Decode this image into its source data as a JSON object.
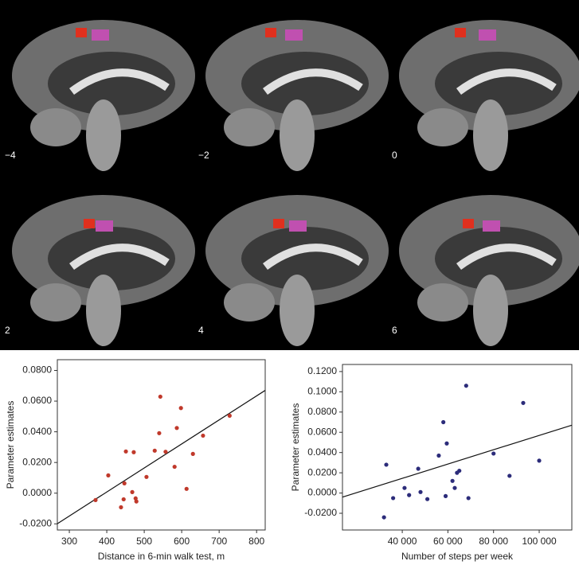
{
  "panels": [
    {
      "label": "−4"
    },
    {
      "label": "−2"
    },
    {
      "label": "0"
    },
    {
      "label": "2"
    },
    {
      "label": "4"
    },
    {
      "label": "6"
    }
  ],
  "chart_data": [
    {
      "type": "scatter",
      "xlabel": "Distance in 6-min walk test, m",
      "ylabel": "Parameter estimates",
      "color": "#c0392b",
      "x": [
        370,
        404,
        438,
        445,
        447,
        451,
        468,
        472,
        477,
        479,
        506,
        528,
        543,
        540,
        557,
        581,
        587,
        598,
        613,
        630,
        657,
        728
      ],
      "values": [
        -0.0045,
        0.0116,
        -0.0092,
        -0.004,
        0.0064,
        0.0272,
        0.0007,
        0.0267,
        -0.0034,
        -0.0054,
        0.0106,
        0.0277,
        0.0629,
        0.0391,
        0.027,
        0.0172,
        0.0425,
        0.0555,
        0.0028,
        0.0256,
        0.0375,
        0.0505
      ],
      "fit": {
        "x": [
          268,
          823
        ],
        "values": [
          -0.0199,
          0.067
        ]
      },
      "xlim": [
        268,
        823
      ],
      "ylim": [
        -0.024,
        0.087
      ],
      "xticks": [
        300,
        400,
        500,
        600,
        700,
        800
      ],
      "yticks": [
        {
          "value": -0.02,
          "label": "-0.0200"
        },
        {
          "value": 0,
          "label": "0.0000"
        },
        {
          "value": 0.02,
          "label": "0.0200"
        },
        {
          "value": 0.04,
          "label": "0.0400"
        },
        {
          "value": 0.06,
          "label": "0.0600"
        },
        {
          "value": 0.08,
          "label": "0.0800"
        }
      ]
    },
    {
      "type": "scatter",
      "xlabel": "Number of steps per week",
      "ylabel": "Parameter estimates",
      "color": "#2c2c7a",
      "x": [
        32000,
        33000,
        36000,
        41000,
        43000,
        47000,
        48000,
        51000,
        56000,
        58000,
        59000,
        59500,
        62000,
        63000,
        64000,
        65000,
        68000,
        69000,
        80000,
        87000,
        93000,
        100000
      ],
      "values": [
        -0.024,
        0.028,
        -0.005,
        0.005,
        -0.002,
        0.024,
        0.001,
        -0.006,
        0.037,
        0.07,
        -0.003,
        0.049,
        0.012,
        0.005,
        0.02,
        0.022,
        0.106,
        -0.005,
        0.039,
        0.017,
        0.089,
        0.032
      ],
      "fit": {
        "x": [
          13800,
          114300
        ],
        "values": [
          -0.004,
          0.067
        ]
      },
      "xlim": [
        13800,
        114300
      ],
      "ylim": [
        -0.0365,
        0.127
      ],
      "xticks": [
        {
          "value": 40000,
          "label": "40 000"
        },
        {
          "value": 60000,
          "label": "60 000"
        },
        {
          "value": 80000,
          "label": "80 000"
        },
        {
          "value": 100000,
          "label": "100 000"
        }
      ],
      "yticks": [
        {
          "value": -0.02,
          "label": "-0.0200"
        },
        {
          "value": 0,
          "label": "0.0000"
        },
        {
          "value": 0.02,
          "label": "0.0200"
        },
        {
          "value": 0.04,
          "label": "0.0400"
        },
        {
          "value": 0.06,
          "label": "0.0600"
        },
        {
          "value": 0.08,
          "label": "0.0800"
        },
        {
          "value": 0.1,
          "label": "0.1000"
        },
        {
          "value": 0.12,
          "label": "0.1200"
        }
      ]
    }
  ]
}
